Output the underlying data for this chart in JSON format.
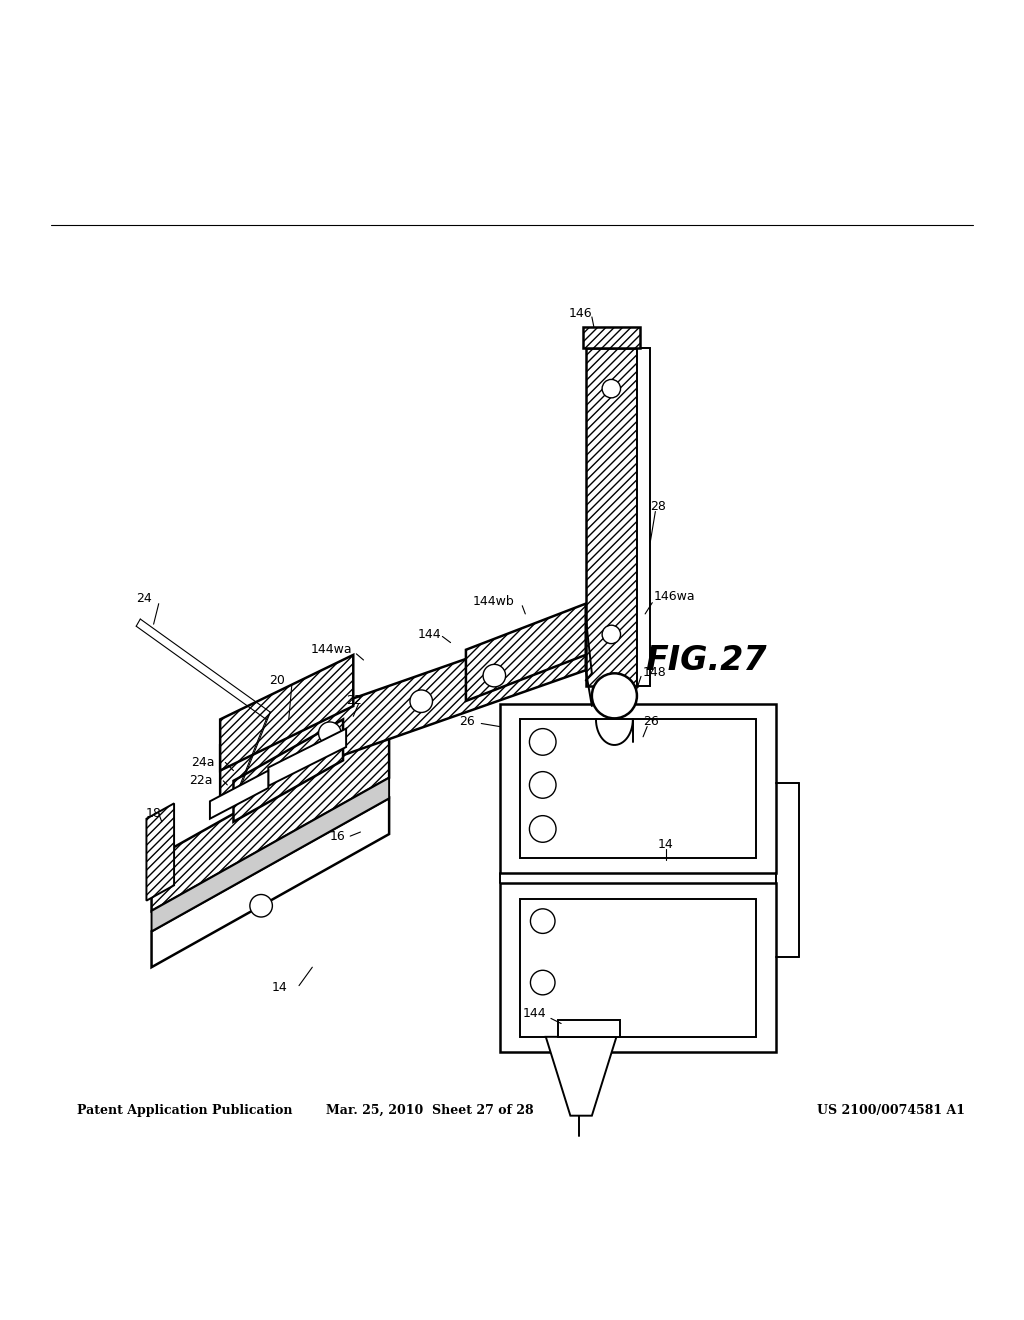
{
  "bg_color": "#ffffff",
  "header_left": "Patent Application Publication",
  "header_mid": "Mar. 25, 2010  Sheet 27 of 28",
  "header_right": "US 2100/0074581 A1",
  "fig_label": "FIG.27",
  "header_right_correct": "US 2100/0074581 A1"
}
